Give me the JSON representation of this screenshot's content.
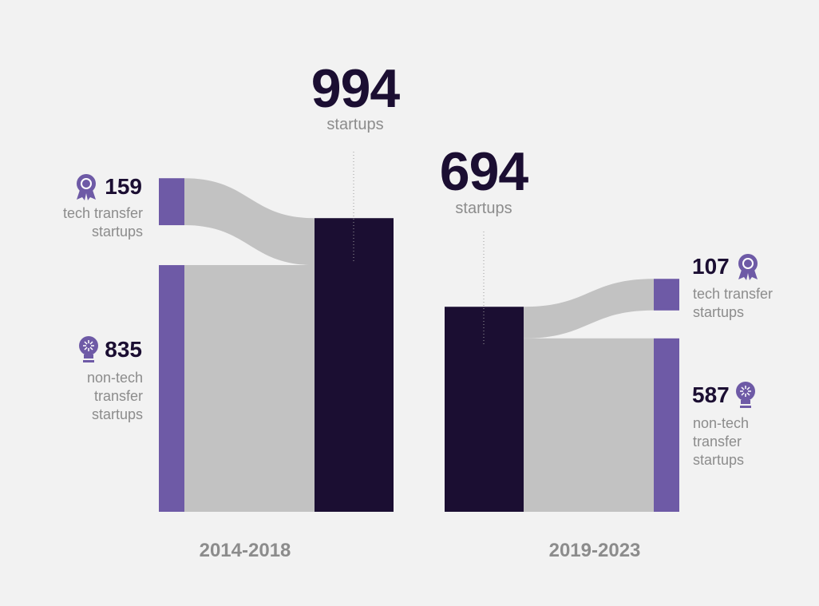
{
  "chart_data": {
    "type": "sankey",
    "unit": "startups",
    "colors": {
      "segment": "#6e5aa6",
      "total": "#1b0e32",
      "flow": "#c2c2c2"
    },
    "periods": [
      {
        "name": "2014-2018",
        "total": 994,
        "segments": [
          {
            "name": "tech transfer startups",
            "value": 159
          },
          {
            "name": "non-tech transfer startups",
            "value": 835
          }
        ]
      },
      {
        "name": "2019-2023",
        "total": 694,
        "segments": [
          {
            "name": "tech transfer startups",
            "value": 107
          },
          {
            "name": "non-tech transfer startups",
            "value": 587
          }
        ]
      }
    ]
  }
}
